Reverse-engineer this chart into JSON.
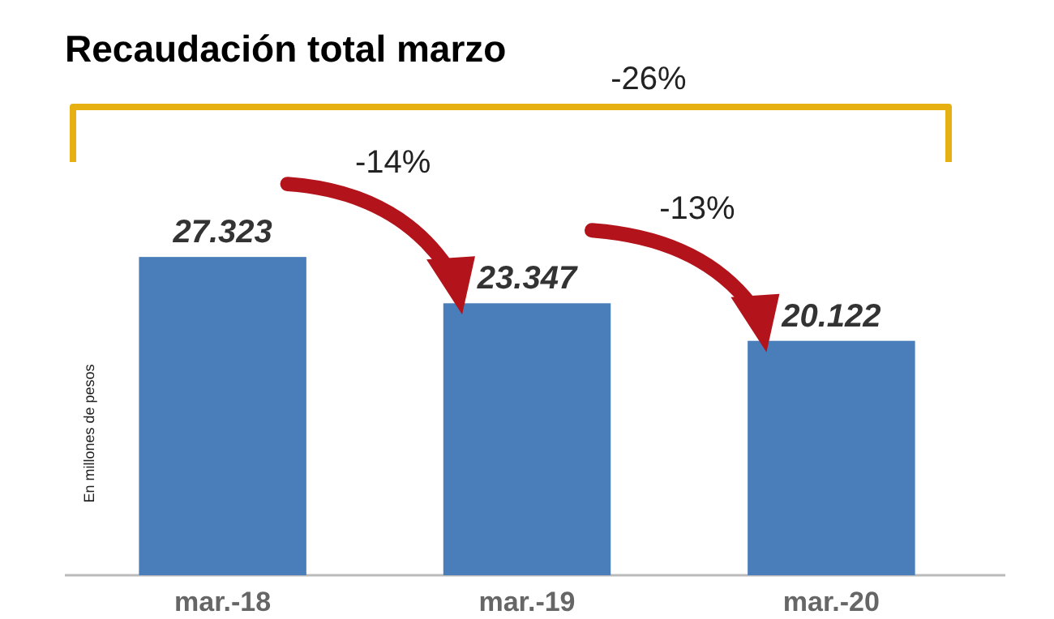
{
  "chart_data": {
    "type": "bar",
    "title": "Recaudación total marzo",
    "ylabel": "En millones de pesos",
    "categories": [
      "mar.-18",
      "mar.-19",
      "mar.-20"
    ],
    "values": [
      27323,
      23347,
      20122
    ],
    "value_labels": [
      "27.323",
      "23.347",
      "20.122"
    ],
    "color": "#4a7ebb",
    "annotations": [
      "-26%",
      "-14%",
      "-13%"
    ]
  }
}
